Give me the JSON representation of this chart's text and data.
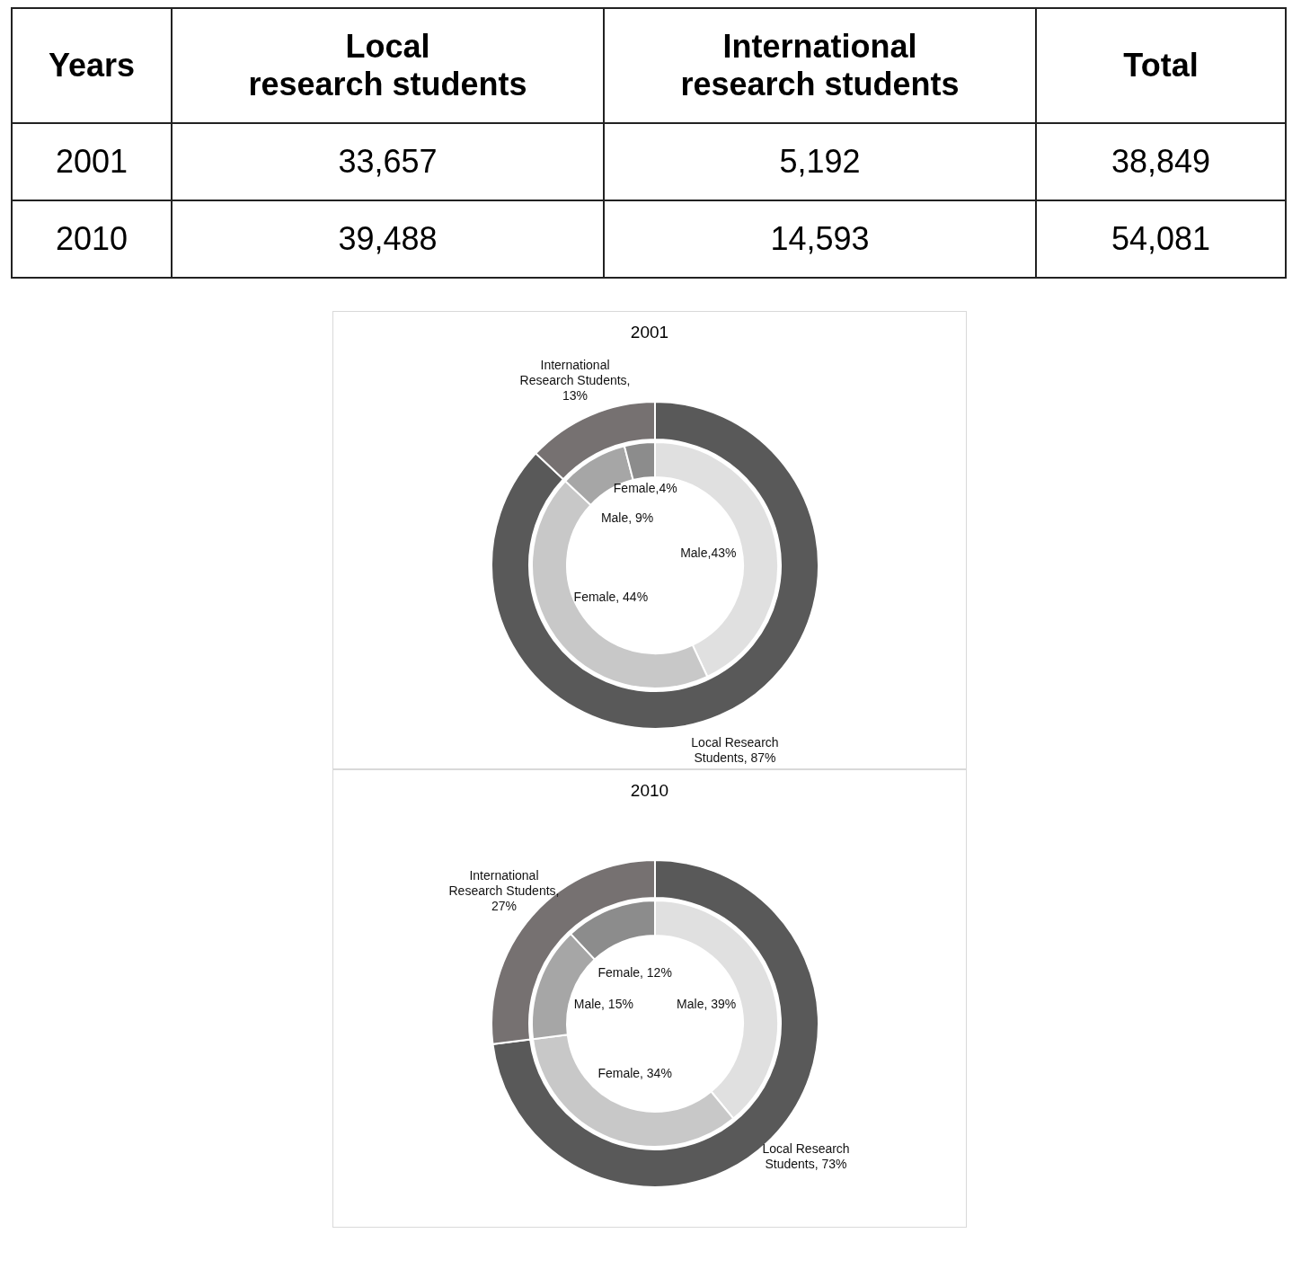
{
  "chart_data": [
    {
      "type": "heatmap",
      "ylabel": "Years",
      "categories": [
        "Local\nresearch students",
        "International\nresearch students",
        "Total"
      ],
      "y_categories": [
        "2001",
        "2010"
      ],
      "cells": [
        [
          33657,
          5192,
          38849
        ],
        [
          39488,
          14593,
          54081
        ]
      ],
      "cell_labels": [
        [
          "33,657",
          "5,192",
          "38,849"
        ],
        [
          "39,488",
          "14,593",
          "54,081"
        ]
      ]
    },
    {
      "type": "donut",
      "title": "2001",
      "categories": [
        "Local Research Students",
        "International Research Students"
      ],
      "values": [
        87,
        13
      ],
      "value_labels": [
        ", 87%",
        ", 13%"
      ],
      "colors": [
        "#595959",
        "#767171"
      ]
    },
    {
      "type": "donut",
      "categories": [
        "Male",
        "Female",
        "Male",
        "Female"
      ],
      "values": [
        43,
        44,
        9,
        4
      ],
      "value_labels": [
        ",43%",
        ", 44%",
        ", 9%",
        ",4%"
      ],
      "colors": [
        "#e0e0e0",
        "#c8c8c8",
        "#a6a6a6",
        "#8c8c8c"
      ]
    },
    {
      "type": "donut",
      "title": "2010",
      "categories": [
        "Local Research Students",
        "International Research Students"
      ],
      "values": [
        73,
        27
      ],
      "value_labels": [
        ", 73%",
        ", 27%"
      ],
      "colors": [
        "#595959",
        "#767171"
      ]
    },
    {
      "type": "donut",
      "categories": [
        "Male",
        "Female",
        "Male",
        "Female"
      ],
      "values": [
        39,
        34,
        15,
        12
      ],
      "value_labels": [
        ", 39%",
        ", 34%",
        ", 15%",
        ", 12%"
      ],
      "colors": [
        "#e0e0e0",
        "#c8c8c8",
        "#a6a6a6",
        "#8c8c8c"
      ]
    }
  ]
}
